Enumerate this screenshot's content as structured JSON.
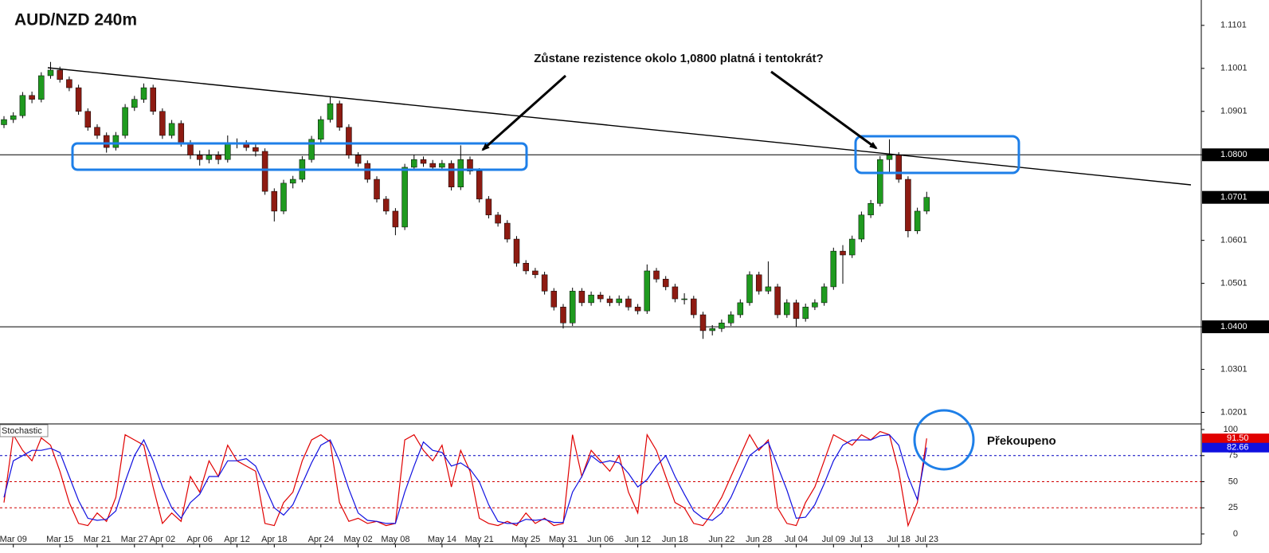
{
  "chart_data": [
    {
      "type": "candlestick",
      "title": "AUD/NZD 240m",
      "annotation": "Zůstane rezistence okolo 1,0800 platná i tentokrát?",
      "categories": [
        null,
        "Mar 09",
        null,
        null,
        null,
        null,
        "Mar 15",
        null,
        null,
        null,
        "Mar 21",
        null,
        null,
        null,
        "Mar 27",
        null,
        null,
        "Apr 02",
        null,
        null,
        null,
        "Apr 06",
        null,
        null,
        null,
        "Apr 12",
        null,
        null,
        null,
        "Apr 18",
        null,
        null,
        null,
        null,
        "Apr 24",
        null,
        null,
        null,
        "May 02",
        null,
        null,
        null,
        "May 08",
        null,
        null,
        null,
        null,
        "May 14",
        null,
        null,
        null,
        "May 21",
        null,
        null,
        null,
        null,
        "May 25",
        null,
        null,
        null,
        "May 31",
        null,
        null,
        null,
        "Jun 06",
        null,
        null,
        null,
        "Jun 12",
        null,
        null,
        null,
        "Jun 18",
        null,
        null,
        null,
        null,
        "Jun 22",
        null,
        null,
        null,
        "Jun 28",
        null,
        null,
        null,
        "Jul 04",
        null,
        null,
        null,
        "Jul 09",
        null,
        null,
        "Jul 13",
        null,
        null,
        null,
        "Jul 18",
        null,
        null,
        "Jul 23"
      ],
      "open": [
        1.087,
        1.0882,
        1.0891,
        1.0938,
        1.0929,
        1.0984,
        1.0997,
        1.0975,
        1.0956,
        1.0901,
        1.0864,
        1.0845,
        1.0817,
        1.0845,
        1.091,
        1.0929,
        1.0956,
        1.0901,
        1.0845,
        1.0873,
        1.0827,
        1.0799,
        1.0789,
        1.0799,
        1.0789,
        1.0827,
        1.0827,
        1.0817,
        1.0808,
        1.0715,
        1.0669,
        1.0734,
        1.0743,
        1.0789,
        1.0836,
        1.0882,
        1.0919,
        1.0864,
        1.0799,
        1.078,
        1.0743,
        1.0697,
        1.0669,
        1.0632,
        1.0771,
        1.0789,
        1.078,
        1.0771,
        1.078,
        1.0725,
        1.0789,
        1.0762,
        1.0697,
        1.066,
        1.0641,
        1.0604,
        1.0548,
        1.053,
        1.0521,
        1.0483,
        1.0446,
        1.0409,
        1.0483,
        1.0456,
        1.0474,
        1.0465,
        1.0456,
        1.0465,
        1.0446,
        1.0437,
        1.053,
        1.0511,
        1.0493,
        1.0465,
        1.0465,
        1.0428,
        1.0391,
        1.0396,
        1.0409,
        1.0428,
        1.0456,
        1.0521,
        1.0483,
        1.0493,
        1.0428,
        1.0456,
        1.0419,
        1.0446,
        1.0456,
        1.0493,
        1.0576,
        1.0567,
        1.0604,
        1.066,
        1.0687,
        1.0789,
        1.0799,
        1.0743,
        1.0623,
        1.0669
      ],
      "high": [
        1.089,
        1.0899,
        1.0946,
        1.0947,
        1.0992,
        1.1016,
        1.1005,
        1.0982,
        1.0963,
        1.0908,
        1.0871,
        1.0852,
        1.0853,
        1.0918,
        1.0937,
        1.0966,
        1.0963,
        1.0908,
        1.0881,
        1.088,
        1.0834,
        1.081,
        1.0812,
        1.0808,
        1.0845,
        1.0838,
        1.0834,
        1.0825,
        1.0815,
        1.0722,
        1.0742,
        1.0751,
        1.0797,
        1.0844,
        1.089,
        1.0934,
        1.0926,
        1.0871,
        1.0806,
        1.0787,
        1.075,
        1.0704,
        1.0676,
        1.0779,
        1.08,
        1.0796,
        1.0788,
        1.0788,
        1.0787,
        1.0822,
        1.0796,
        1.0769,
        1.0704,
        1.0667,
        1.0648,
        1.0611,
        1.0555,
        1.0537,
        1.0528,
        1.049,
        1.0453,
        1.0491,
        1.049,
        1.0482,
        1.0481,
        1.0472,
        1.0473,
        1.0472,
        1.0453,
        1.0545,
        1.0537,
        1.0518,
        1.05,
        1.0478,
        1.0472,
        1.0435,
        1.0404,
        1.0417,
        1.0436,
        1.0464,
        1.0529,
        1.0528,
        1.0552,
        1.05,
        1.0464,
        1.0463,
        1.0454,
        1.0464,
        1.0501,
        1.0584,
        1.059,
        1.0612,
        1.0668,
        1.0695,
        1.0797,
        1.0836,
        1.0806,
        1.075,
        1.0677,
        1.0714
      ],
      "low": [
        1.0862,
        1.0874,
        1.0885,
        1.092,
        1.0922,
        1.0977,
        1.0968,
        1.0948,
        1.0893,
        1.0856,
        1.0837,
        1.0805,
        1.081,
        1.0838,
        1.0902,
        1.0921,
        1.0893,
        1.0837,
        1.0838,
        1.0819,
        1.079,
        1.0775,
        1.078,
        1.0778,
        1.0782,
        1.0815,
        1.0809,
        1.0796,
        1.0707,
        1.0645,
        1.0662,
        1.0722,
        1.0736,
        1.0782,
        1.0829,
        1.0875,
        1.0856,
        1.0791,
        1.0772,
        1.0735,
        1.0689,
        1.0661,
        1.0613,
        1.0625,
        1.0763,
        1.0772,
        1.0763,
        1.0764,
        1.0717,
        1.0718,
        1.0754,
        1.0689,
        1.0652,
        1.0633,
        1.0596,
        1.054,
        1.0522,
        1.0513,
        1.0475,
        1.0438,
        1.0396,
        1.0402,
        1.0448,
        1.0449,
        1.0457,
        1.0448,
        1.0449,
        1.0438,
        1.0429,
        1.043,
        1.0503,
        1.0485,
        1.0457,
        1.0452,
        1.042,
        1.0372,
        1.038,
        1.0388,
        1.0402,
        1.0421,
        1.0449,
        1.0475,
        1.0476,
        1.042,
        1.0421,
        1.04,
        1.0412,
        1.0439,
        1.0449,
        1.0486,
        1.05,
        1.056,
        1.0597,
        1.0653,
        1.068,
        1.076,
        1.0735,
        1.0608,
        1.0616,
        1.0662
      ],
      "close": [
        1.0882,
        1.0891,
        1.0938,
        1.0929,
        1.0984,
        1.0997,
        1.0975,
        1.0956,
        1.0901,
        1.0864,
        1.0845,
        1.0817,
        1.0845,
        1.091,
        1.0929,
        1.0956,
        1.0901,
        1.0845,
        1.0873,
        1.0827,
        1.0799,
        1.0789,
        1.0799,
        1.0789,
        1.0827,
        1.0827,
        1.0817,
        1.0808,
        1.0715,
        1.0669,
        1.0734,
        1.0743,
        1.0789,
        1.0836,
        1.0882,
        1.0919,
        1.0864,
        1.0799,
        1.078,
        1.0743,
        1.0697,
        1.0669,
        1.0632,
        1.0771,
        1.0789,
        1.078,
        1.0771,
        1.078,
        1.0725,
        1.0789,
        1.0762,
        1.0697,
        1.066,
        1.0641,
        1.0604,
        1.0548,
        1.053,
        1.0521,
        1.0483,
        1.0446,
        1.0409,
        1.0483,
        1.0456,
        1.0474,
        1.0465,
        1.0456,
        1.0465,
        1.0446,
        1.0437,
        1.053,
        1.0511,
        1.0493,
        1.0465,
        1.0465,
        1.0428,
        1.0391,
        1.0396,
        1.0409,
        1.0428,
        1.0456,
        1.0521,
        1.0483,
        1.0493,
        1.0428,
        1.0456,
        1.0419,
        1.0446,
        1.0456,
        1.0493,
        1.0576,
        1.0567,
        1.0604,
        1.066,
        1.0687,
        1.0789,
        1.0799,
        1.0743,
        1.0623,
        1.0669,
        1.0701
      ],
      "up_color": "#1f9a1f",
      "down_color": "#8e1b12",
      "ylim": [
        1.0176,
        1.116
      ],
      "yticks": [
        1.1101,
        1.1001,
        1.0901,
        {
          "value": 1.08,
          "label": "1.0800"
        },
        1.0601,
        1.0501,
        {
          "value": 1.04,
          "label": "1.0400"
        },
        1.0301,
        1.0201
      ],
      "hlines": [
        1.08,
        1.04
      ],
      "current_price": 1.0701
    },
    {
      "type": "line",
      "title": "Stochastic",
      "annotation": "Překoupeno",
      "series": [
        {
          "color": "#e00000",
          "values": [
            30,
            95,
            80,
            70,
            92,
            85,
            60,
            30,
            10,
            8,
            20,
            12,
            35,
            95,
            90,
            85,
            45,
            10,
            20,
            12,
            55,
            40,
            70,
            55,
            85,
            70,
            65,
            60,
            10,
            8,
            30,
            40,
            70,
            90,
            95,
            88,
            30,
            12,
            15,
            10,
            12,
            8,
            10,
            90,
            95,
            80,
            70,
            85,
            45,
            80,
            60,
            15,
            10,
            8,
            12,
            8,
            20,
            10,
            15,
            8,
            10,
            95,
            55,
            80,
            70,
            60,
            75,
            40,
            20,
            95,
            80,
            55,
            30,
            25,
            10,
            8,
            20,
            35,
            55,
            75,
            95,
            80,
            90,
            25,
            10,
            8,
            30,
            45,
            70,
            95,
            90,
            85,
            95,
            90,
            98,
            95,
            60,
            8,
            30,
            91.5
          ],
          "value_labels": [
            null,
            null,
            null,
            null,
            null,
            null,
            null,
            null,
            null,
            null,
            null,
            null,
            null,
            null,
            null,
            null,
            null,
            null,
            null,
            null,
            null,
            null,
            null,
            null,
            null,
            null,
            null,
            null,
            null,
            null,
            null,
            null,
            null,
            null,
            null,
            null,
            null,
            null,
            null,
            null,
            null,
            null,
            null,
            null,
            null,
            null,
            null,
            null,
            null,
            null,
            null,
            null,
            null,
            null,
            null,
            null,
            null,
            null,
            null,
            null,
            null,
            null,
            null,
            null,
            null,
            null,
            null,
            null,
            null,
            null,
            null,
            null,
            null,
            null,
            null,
            null,
            null,
            null,
            null,
            null,
            null,
            null,
            null,
            null,
            null,
            null,
            null,
            null,
            null,
            null,
            null,
            null,
            null,
            null,
            null,
            null,
            null,
            null,
            null,
            "91.50"
          ]
        },
        {
          "color": "#1010e0",
          "values": [
            35,
            70,
            75,
            80,
            80,
            82,
            78,
            55,
            32,
            15,
            13,
            14,
            22,
            50,
            75,
            90,
            70,
            45,
            25,
            15,
            30,
            38,
            55,
            55,
            70,
            70,
            72,
            65,
            45,
            25,
            18,
            28,
            48,
            68,
            85,
            90,
            70,
            43,
            20,
            13,
            12,
            10,
            10,
            40,
            65,
            88,
            80,
            78,
            65,
            68,
            62,
            50,
            28,
            12,
            10,
            10,
            14,
            13,
            14,
            11,
            11,
            40,
            55,
            75,
            68,
            70,
            68,
            58,
            45,
            52,
            65,
            75,
            55,
            38,
            22,
            15,
            13,
            20,
            35,
            55,
            75,
            82,
            88,
            65,
            42,
            15,
            16,
            28,
            48,
            70,
            85,
            90,
            90,
            90,
            94,
            95,
            85,
            55,
            33,
            82.66
          ],
          "value_labels": [
            null,
            null,
            null,
            null,
            null,
            null,
            null,
            null,
            null,
            null,
            null,
            null,
            null,
            null,
            null,
            null,
            null,
            null,
            null,
            null,
            null,
            null,
            null,
            null,
            null,
            null,
            null,
            null,
            null,
            null,
            null,
            null,
            null,
            null,
            null,
            null,
            null,
            null,
            null,
            null,
            null,
            null,
            null,
            null,
            null,
            null,
            null,
            null,
            null,
            null,
            null,
            null,
            null,
            null,
            null,
            null,
            null,
            null,
            null,
            null,
            null,
            null,
            null,
            null,
            null,
            null,
            null,
            null,
            null,
            null,
            null,
            null,
            null,
            null,
            null,
            null,
            null,
            null,
            null,
            null,
            null,
            null,
            null,
            null,
            null,
            null,
            null,
            null,
            null,
            null,
            null,
            null,
            null,
            null,
            null,
            null,
            null,
            null,
            null,
            "82.66"
          ]
        }
      ],
      "levels": [
        {
          "value": 75,
          "color": "#0000c0"
        },
        {
          "value": 50,
          "color": "#d00000"
        },
        {
          "value": 25,
          "color": "#d00000"
        }
      ],
      "ylim": [
        -9.9,
        104.6
      ],
      "yticks": [
        0,
        25,
        50,
        75,
        100
      ]
    }
  ]
}
